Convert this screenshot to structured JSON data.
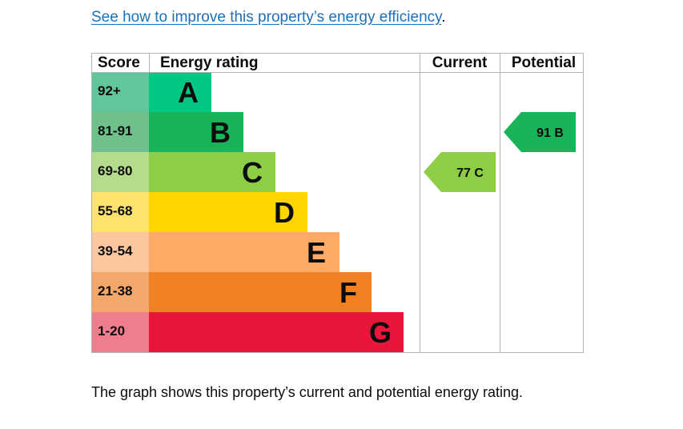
{
  "links": {
    "improve_text": "See how to improve this property’s energy efficiency",
    "improve_suffix": "."
  },
  "caption": "The graph shows this property’s current and potential energy rating.",
  "chart_data": {
    "type": "bar",
    "headers": {
      "score": "Score",
      "rating": "Energy rating",
      "current": "Current",
      "potential": "Potential"
    },
    "bands": [
      {
        "letter": "A",
        "range": "92+",
        "score_color": "#63c69b",
        "bar_color": "#00c781",
        "bar_level": 1
      },
      {
        "letter": "B",
        "range": "81-91",
        "score_color": "#6fc08a",
        "bar_color": "#19b459",
        "bar_level": 2
      },
      {
        "letter": "C",
        "range": "69-80",
        "score_color": "#b5dc8c",
        "bar_color": "#8dce46",
        "bar_level": 3
      },
      {
        "letter": "D",
        "range": "55-68",
        "score_color": "#fde26d",
        "bar_color": "#ffd500",
        "bar_level": 4
      },
      {
        "letter": "E",
        "range": "39-54",
        "score_color": "#fcc69f",
        "bar_color": "#fcaa65",
        "bar_level": 5
      },
      {
        "letter": "F",
        "range": "21-38",
        "score_color": "#f3a76b",
        "bar_color": "#ef8023",
        "bar_level": 6
      },
      {
        "letter": "G",
        "range": "1-20",
        "score_color": "#f07d8d",
        "bar_color": "#e9153b",
        "bar_level": 7
      }
    ],
    "current": {
      "value": 77,
      "letter": "C",
      "label": "77 C",
      "color": "#8dce46"
    },
    "potential": {
      "value": 91,
      "letter": "B",
      "label": "91 B",
      "color": "#19b459"
    }
  }
}
